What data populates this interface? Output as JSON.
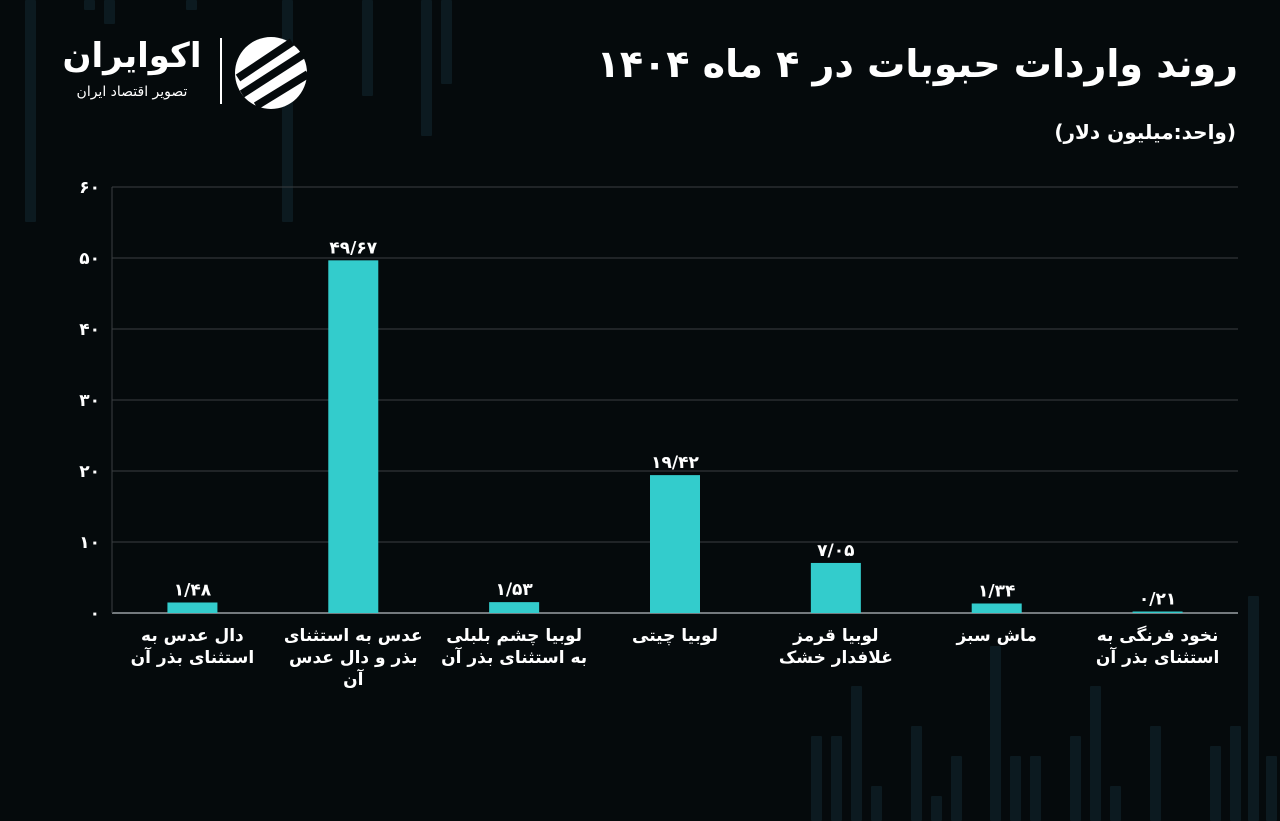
{
  "header": {
    "title": "روند واردات حبوبات در ۴ ماه ۱۴۰۴",
    "unit": "(واحد:میلیون دلار)"
  },
  "logo": {
    "name": "اکوایران",
    "tagline": "تصویر اقتصاد ایران"
  },
  "colors": {
    "bar": "#33cccc",
    "grid": "#3a3f42",
    "text": "#ffffff",
    "background": "#050a0c"
  },
  "chart_data": {
    "type": "bar",
    "title": "روند واردات حبوبات در ۴ ماه ۱۴۰۴",
    "ylabel": "(واحد:میلیون دلار)",
    "xlabel": "",
    "ylim": [
      0,
      60
    ],
    "grid": true,
    "yticks": [
      0,
      10,
      20,
      30,
      40,
      50,
      60
    ],
    "ytick_labels": [
      "۰",
      "۱۰",
      "۲۰",
      "۳۰",
      "۴۰",
      "۵۰",
      "۶۰"
    ],
    "categories": [
      "دال عدس به استثنای بذر آن",
      "عدس به استثنای بذر و دال عدس آن",
      "لوبیا چشم بلبلی به استثنای بذر آن",
      "لوبیا چیتی",
      "لوبیا قرمز غلافدار خشک",
      "ماش سبز",
      "نخود فرنگی به استثنای بذر آن"
    ],
    "values": [
      1.48,
      49.67,
      1.53,
      19.42,
      7.05,
      1.34,
      0.21
    ],
    "value_labels": [
      "۱/۴۸",
      "۴۹/۶۷",
      "۱/۵۳",
      "۱۹/۴۲",
      "۷/۰۵",
      "۱/۳۴",
      "۰/۲۱"
    ]
  }
}
